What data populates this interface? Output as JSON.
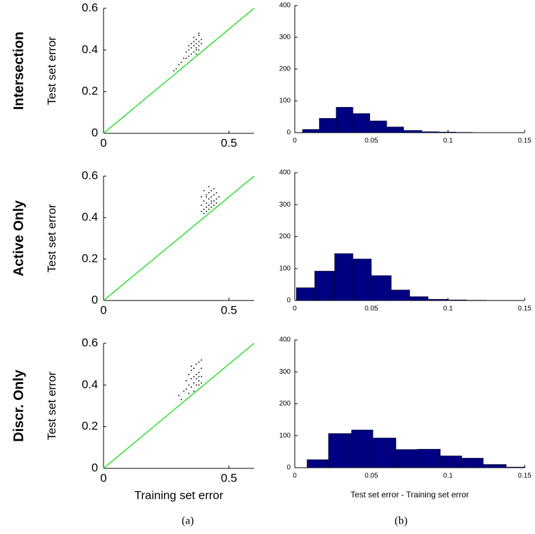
{
  "rows": [
    "Intersection",
    "Active Only",
    "Discr. Only"
  ],
  "panel_labels": [
    "(a)",
    "(b)"
  ],
  "chart_data": [
    {
      "type": "scatter",
      "ylabel": "Test set error",
      "xlim": [
        0,
        0.6
      ],
      "ylim": [
        0,
        0.6
      ],
      "xticks": [
        0,
        0.5
      ],
      "yticks": [
        0,
        0.2,
        0.4,
        0.6
      ],
      "series": [
        {
          "color": "#000000",
          "x": [
            0.28,
            0.29,
            0.3,
            0.31,
            0.32,
            0.33,
            0.33,
            0.34,
            0.34,
            0.35,
            0.35,
            0.35,
            0.36,
            0.36,
            0.36,
            0.37,
            0.37,
            0.37,
            0.37,
            0.38,
            0.38,
            0.38,
            0.38,
            0.39,
            0.39,
            0.36,
            0.34,
            0.38,
            0.37,
            0.35
          ],
          "values": [
            0.3,
            0.31,
            0.33,
            0.34,
            0.36,
            0.36,
            0.39,
            0.37,
            0.4,
            0.38,
            0.41,
            0.43,
            0.39,
            0.42,
            0.44,
            0.4,
            0.43,
            0.45,
            0.41,
            0.42,
            0.44,
            0.47,
            0.4,
            0.43,
            0.45,
            0.46,
            0.42,
            0.48,
            0.38,
            0.35
          ]
        },
        {
          "type": "line",
          "color": "#33dd33",
          "x": [
            0,
            0.6
          ],
          "values": [
            0,
            0.6
          ]
        }
      ]
    },
    {
      "type": "histogram",
      "xlim": [
        0,
        0.15
      ],
      "ylim": [
        0,
        400
      ],
      "xticks": [
        0,
        0.05,
        0.1,
        0.15
      ],
      "yticks": [
        0,
        100,
        200,
        300,
        400
      ],
      "color": "#000080",
      "bins": [
        0.005,
        0.016,
        0.027,
        0.038,
        0.049,
        0.06,
        0.071,
        0.083,
        0.094,
        0.105,
        0.116
      ],
      "values": [
        10,
        45,
        80,
        60,
        37,
        18,
        7,
        3,
        2,
        1
      ]
    },
    {
      "type": "scatter",
      "ylabel": "Test set error",
      "xlim": [
        0,
        0.6
      ],
      "ylim": [
        0,
        0.6
      ],
      "xticks": [
        0,
        0.5
      ],
      "yticks": [
        0,
        0.2,
        0.4,
        0.6
      ],
      "series": [
        {
          "color": "#000000",
          "x": [
            0.39,
            0.39,
            0.4,
            0.4,
            0.41,
            0.41,
            0.41,
            0.42,
            0.42,
            0.42,
            0.43,
            0.43,
            0.43,
            0.44,
            0.44,
            0.44,
            0.45,
            0.45,
            0.4,
            0.42,
            0.43,
            0.41,
            0.44,
            0.46,
            0.4,
            0.42,
            0.43,
            0.45,
            0.41,
            0.39
          ],
          "values": [
            0.43,
            0.46,
            0.44,
            0.48,
            0.45,
            0.47,
            0.5,
            0.46,
            0.49,
            0.52,
            0.47,
            0.5,
            0.53,
            0.48,
            0.51,
            0.54,
            0.49,
            0.52,
            0.42,
            0.44,
            0.45,
            0.51,
            0.46,
            0.5,
            0.53,
            0.55,
            0.48,
            0.47,
            0.43,
            0.5
          ]
        },
        {
          "type": "line",
          "color": "#33dd33",
          "x": [
            0,
            0.6
          ],
          "values": [
            0,
            0.6
          ]
        }
      ]
    },
    {
      "type": "histogram",
      "xlim": [
        0,
        0.15
      ],
      "ylim": [
        0,
        400
      ],
      "xticks": [
        0,
        0.05,
        0.1,
        0.15
      ],
      "yticks": [
        0,
        100,
        200,
        300,
        400
      ],
      "color": "#000080",
      "bins": [
        0.001,
        0.013,
        0.026,
        0.038,
        0.05,
        0.063,
        0.075,
        0.087,
        0.1,
        0.112,
        0.125
      ],
      "values": [
        40,
        92,
        147,
        130,
        78,
        33,
        12,
        4,
        2,
        1
      ]
    },
    {
      "type": "scatter",
      "ylabel": "Test set error",
      "xlabel": "Training set error",
      "xlim": [
        0,
        0.6
      ],
      "ylim": [
        0,
        0.6
      ],
      "xticks": [
        0,
        0.5
      ],
      "yticks": [
        0,
        0.2,
        0.4,
        0.6
      ],
      "series": [
        {
          "color": "#000000",
          "x": [
            0.3,
            0.31,
            0.32,
            0.33,
            0.33,
            0.34,
            0.34,
            0.35,
            0.35,
            0.35,
            0.36,
            0.36,
            0.36,
            0.37,
            0.37,
            0.37,
            0.38,
            0.38,
            0.38,
            0.38,
            0.39,
            0.39,
            0.39,
            0.36,
            0.37,
            0.38,
            0.34,
            0.35,
            0.38,
            0.39
          ],
          "values": [
            0.35,
            0.33,
            0.37,
            0.38,
            0.42,
            0.4,
            0.45,
            0.39,
            0.43,
            0.47,
            0.41,
            0.44,
            0.48,
            0.4,
            0.45,
            0.5,
            0.42,
            0.46,
            0.51,
            0.38,
            0.44,
            0.48,
            0.52,
            0.37,
            0.43,
            0.4,
            0.36,
            0.49,
            0.44,
            0.41
          ]
        },
        {
          "type": "line",
          "color": "#33dd33",
          "x": [
            0,
            0.6
          ],
          "values": [
            0,
            0.6
          ]
        }
      ]
    },
    {
      "type": "histogram",
      "xlabel": "Test set error - Training set error",
      "xlim": [
        0,
        0.15
      ],
      "ylim": [
        0,
        400
      ],
      "xticks": [
        0,
        0.05,
        0.1,
        0.15
      ],
      "yticks": [
        0,
        100,
        200,
        300,
        400
      ],
      "color": "#000080",
      "bins": [
        0.008,
        0.022,
        0.037,
        0.051,
        0.066,
        0.08,
        0.095,
        0.109,
        0.123,
        0.138,
        0.152
      ],
      "values": [
        25,
        107,
        118,
        93,
        57,
        58,
        37,
        30,
        10,
        2
      ]
    }
  ]
}
